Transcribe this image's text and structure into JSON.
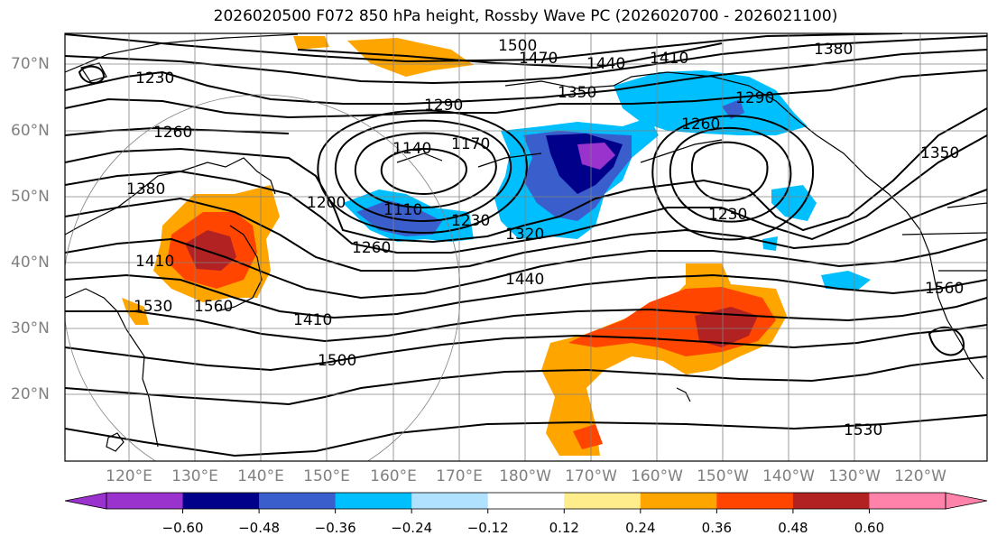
{
  "title": "2026020500 F072 850 hPa height, Rossby Wave PC (2026020700 - 2026021100)",
  "lat_labels": [
    "70°N",
    "60°N",
    "50°N",
    "40°N",
    "30°N",
    "20°N"
  ],
  "lon_labels": [
    "120°E",
    "130°E",
    "140°E",
    "150°E",
    "160°E",
    "170°E",
    "180°W",
    "170°W",
    "160°W",
    "150°W",
    "140°W",
    "130°W",
    "120°W"
  ],
  "contour_labels": [
    "1500",
    "1470",
    "1440",
    "1410",
    "1380",
    "1350",
    "1290",
    "1260",
    "1230",
    "1140",
    "1170",
    "1110",
    "1200",
    "1230",
    "1320",
    "1260",
    "1380",
    "1440",
    "1410",
    "1500",
    "1530",
    "1290",
    "1260",
    "1230",
    "1560",
    "1350",
    "1410",
    "1530",
    "1560"
  ],
  "colorbar": {
    "ticks": [
      "−0.60",
      "−0.48",
      "−0.36",
      "−0.24",
      "−0.12",
      "0.12",
      "0.24",
      "0.36",
      "0.48",
      "0.60"
    ],
    "colors": [
      "#9a32cd",
      "#00008b",
      "#3a5fcd",
      "#00bfff",
      "#b0e2ff",
      "#ffffff",
      "#ffec8b",
      "#ffa500",
      "#ff4500",
      "#b22222",
      "#ff82ab"
    ]
  }
}
